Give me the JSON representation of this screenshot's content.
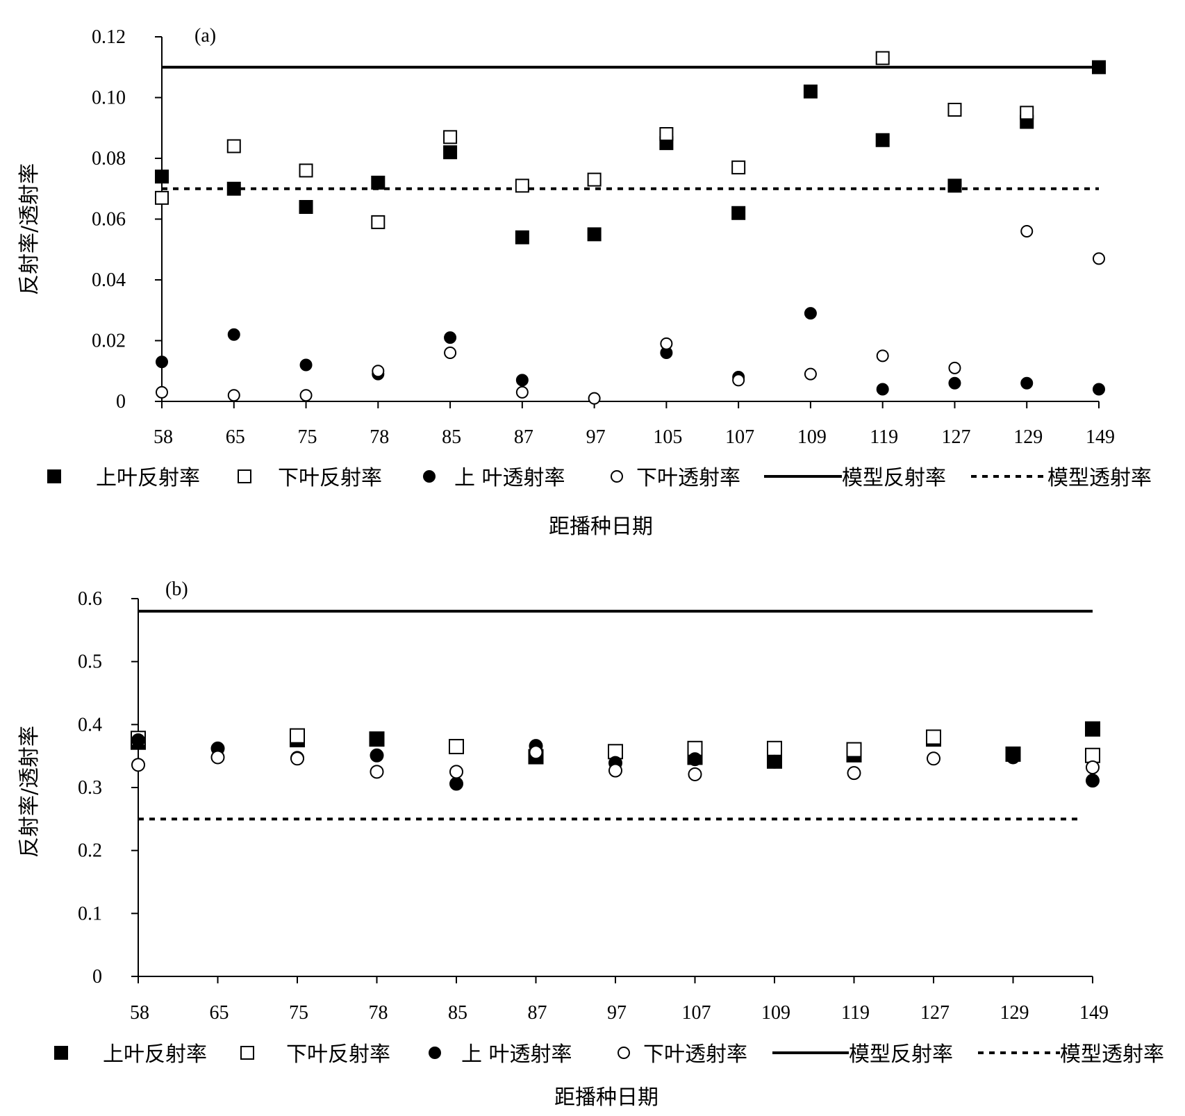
{
  "chart_data": [
    {
      "type": "scatter",
      "panel_label": "(a)",
      "categories": [
        "58",
        "65",
        "75",
        "78",
        "85",
        "87",
        "97",
        "105",
        "107",
        "109",
        "119",
        "127",
        "129",
        "149"
      ],
      "xlabel": "距播种日期",
      "ylabel": "反射率/透射率",
      "ylim": [
        0,
        0.12
      ],
      "yticks": [
        "0.12",
        "0.10",
        "0.08",
        "0.06",
        "0.04",
        "0.02",
        "0"
      ],
      "ytick_values": [
        0.12,
        0.1,
        0.08,
        0.06,
        0.04,
        0.02,
        0
      ],
      "series": [
        {
          "name": "上叶反射率",
          "marker": "filled-square",
          "values": [
            0.074,
            0.07,
            0.064,
            0.072,
            0.082,
            0.054,
            0.055,
            0.085,
            0.062,
            0.102,
            0.086,
            0.071,
            0.092,
            0.11
          ]
        },
        {
          "name": "下叶反射率",
          "marker": "open-square",
          "values": [
            0.067,
            0.084,
            0.076,
            0.059,
            0.087,
            0.071,
            0.073,
            0.088,
            0.077,
            null,
            0.113,
            0.096,
            0.095,
            null
          ]
        },
        {
          "name": "上 叶透射率",
          "marker": "filled-circle",
          "values": [
            0.013,
            0.022,
            0.012,
            0.009,
            0.021,
            0.007,
            null,
            0.016,
            0.008,
            0.029,
            0.004,
            0.006,
            0.006,
            0.004
          ]
        },
        {
          "name": "下叶透射率",
          "marker": "open-circle",
          "values": [
            0.003,
            0.002,
            0.002,
            0.01,
            0.016,
            0.003,
            0.001,
            0.019,
            0.007,
            0.009,
            0.015,
            0.011,
            0.056,
            0.047
          ]
        }
      ],
      "lines": [
        {
          "name": "模型反射率",
          "style": "solid",
          "value": 0.11
        },
        {
          "name": "模型透射率",
          "style": "dotted",
          "value": 0.07
        }
      ],
      "grid": false,
      "legend_position": "bottom"
    },
    {
      "type": "scatter",
      "panel_label": "(b)",
      "categories": [
        "58",
        "65",
        "75",
        "78",
        "85",
        "87",
        "97",
        "107",
        "109",
        "119",
        "127",
        "129",
        "149"
      ],
      "xlabel": "距播种日期",
      "ylabel": "反射率/透射率",
      "ylim": [
        0,
        0.6
      ],
      "yticks": [
        "0.6",
        "0.5",
        "0.4",
        "0.3",
        "0.2",
        "0.1",
        "0"
      ],
      "ytick_values": [
        0.6,
        0.5,
        0.4,
        0.3,
        0.2,
        0.1,
        0
      ],
      "series": [
        {
          "name": "上叶反射率",
          "marker": "filled-square",
          "values": [
            0.372,
            null,
            0.376,
            0.377,
            null,
            0.349,
            null,
            0.348,
            0.342,
            0.352,
            0.377,
            0.353,
            0.393
          ]
        },
        {
          "name": "下叶反射率",
          "marker": "open-square",
          "values": [
            0.378,
            null,
            0.382,
            null,
            0.365,
            null,
            0.357,
            0.362,
            0.362,
            0.36,
            0.38,
            null,
            0.351
          ]
        },
        {
          "name": "上 叶透射率",
          "marker": "filled-circle",
          "values": [
            0.375,
            0.362,
            0.347,
            0.351,
            0.306,
            0.366,
            0.339,
            0.345,
            0.341,
            null,
            null,
            0.348,
            0.311
          ]
        },
        {
          "name": "下叶透射率",
          "marker": "open-circle",
          "values": [
            0.336,
            0.348,
            0.346,
            0.325,
            0.325,
            0.356,
            0.327,
            0.321,
            null,
            0.323,
            0.346,
            null,
            0.332
          ]
        }
      ],
      "lines": [
        {
          "name": "模型反射率",
          "style": "solid",
          "value": 0.58
        },
        {
          "name": "模型透射率",
          "style": "dotted",
          "value": 0.25
        }
      ],
      "grid": false,
      "legend_position": "bottom"
    }
  ]
}
